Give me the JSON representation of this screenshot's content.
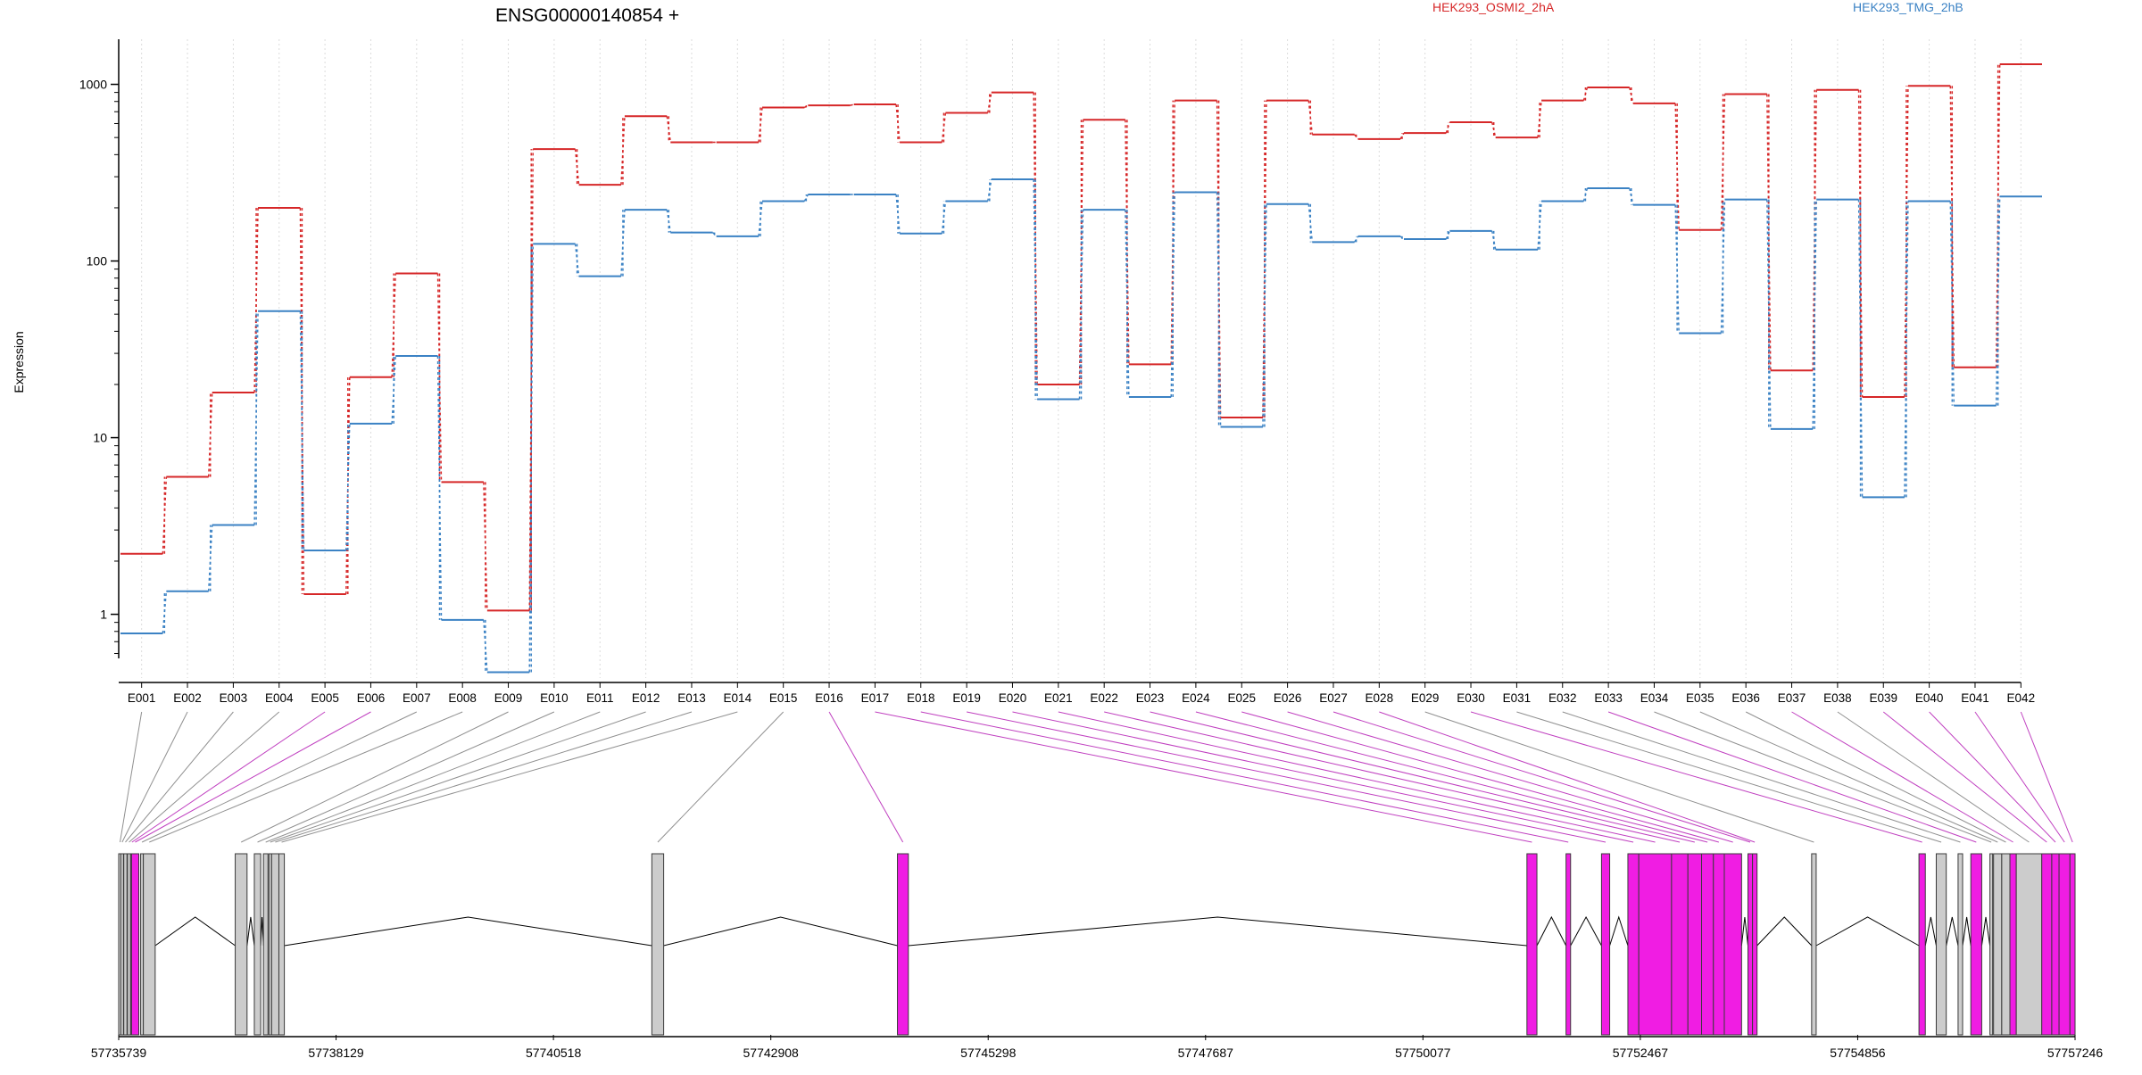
{
  "chart_data": {
    "type": "line",
    "title": "ENSG00000140854 +",
    "ylabel": "Expression",
    "yscale": "log",
    "ylim": [
      0.55,
      1800
    ],
    "yticks": [
      1,
      10,
      100,
      1000
    ],
    "ytick_labels": [
      "1",
      "10",
      "100",
      "1000"
    ],
    "grid": "vertical dotted lines at exon centres",
    "legend_position": "top-right",
    "categories": [
      "E001",
      "E002",
      "E003",
      "E004",
      "E005",
      "E006",
      "E007",
      "E008",
      "E009",
      "E010",
      "E011",
      "E012",
      "E013",
      "E014",
      "E015",
      "E016",
      "E017",
      "E018",
      "E019",
      "E020",
      "E021",
      "E022",
      "E023",
      "E024",
      "E025",
      "E026",
      "E027",
      "E028",
      "E029",
      "E030",
      "E031",
      "E032",
      "E033",
      "E034",
      "E035",
      "E036",
      "E037",
      "E038",
      "E039",
      "E040",
      "E041",
      "E042"
    ],
    "series": [
      {
        "name": "HEK293_OSMI2_2hA",
        "color": "#d62728",
        "values": [
          2.2,
          6,
          18,
          200,
          1.3,
          22,
          85,
          5.6,
          1.05,
          430,
          270,
          660,
          470,
          470,
          740,
          760,
          770,
          470,
          690,
          900,
          20,
          630,
          26,
          810,
          13,
          810,
          520,
          490,
          530,
          610,
          500,
          810,
          960,
          780,
          150,
          880,
          24,
          930,
          17,
          980,
          25,
          1300
        ]
      },
      {
        "name": "HEK293_TMG_2hB",
        "color": "#3b82c4",
        "values": [
          0.78,
          1.35,
          3.2,
          52,
          2.3,
          12,
          29,
          0.93,
          0.47,
          125,
          82,
          195,
          145,
          138,
          218,
          238,
          238,
          143,
          218,
          290,
          16.5,
          195,
          17,
          245,
          11.5,
          210,
          128,
          138,
          133,
          148,
          116,
          218,
          258,
          208,
          39,
          223,
          11.2,
          223,
          4.6,
          218,
          15.2,
          232
        ]
      }
    ],
    "exon_highlight": [
      false,
      false,
      false,
      false,
      true,
      true,
      false,
      false,
      false,
      false,
      false,
      false,
      false,
      false,
      false,
      true,
      true,
      true,
      true,
      true,
      true,
      true,
      true,
      true,
      true,
      true,
      true,
      true,
      false,
      true,
      false,
      false,
      true,
      false,
      false,
      false,
      true,
      false,
      true,
      true,
      true,
      true
    ],
    "gene_model": {
      "start": 57735739,
      "end": 57757246,
      "coordinate_labels": [
        "57735739",
        "57738129",
        "57740518",
        "57742908",
        "57745298",
        "57747687",
        "57750077",
        "57752467",
        "57754856",
        "57757246"
      ],
      "exons": [
        [
          57735739,
          57735760
        ],
        [
          57735762,
          57735790
        ],
        [
          57735795,
          57735830
        ],
        [
          57735835,
          57735870
        ],
        [
          57735870,
          57735880
        ],
        [
          57735880,
          57735960
        ],
        [
          57735980,
          57736010
        ],
        [
          57736010,
          57736140
        ],
        [
          57737020,
          57737150
        ],
        [
          57737230,
          57737300
        ],
        [
          57737330,
          57737380
        ],
        [
          57737390,
          57737420
        ],
        [
          57737420,
          57737500
        ],
        [
          57737500,
          57737560
        ],
        [
          57741600,
          57741730
        ],
        [
          57744300,
          57744420
        ],
        [
          57751220,
          57751330
        ],
        [
          57751650,
          57751700
        ],
        [
          57752040,
          57752130
        ],
        [
          57752330,
          57752450
        ],
        [
          57752450,
          57752810
        ],
        [
          57752810,
          57752990
        ],
        [
          57752990,
          57753140
        ],
        [
          57753140,
          57753270
        ],
        [
          57753270,
          57753390
        ],
        [
          57753390,
          57753580
        ],
        [
          57753650,
          57753700
        ],
        [
          57753700,
          57753750
        ],
        [
          57754350,
          57754400
        ],
        [
          57755530,
          57755600
        ],
        [
          57755720,
          57755830
        ],
        [
          57755960,
          57756010
        ],
        [
          57756100,
          57756220
        ],
        [
          57756310,
          57756340
        ],
        [
          57756350,
          57756440
        ],
        [
          57756440,
          57756530
        ],
        [
          57756530,
          57756600
        ],
        [
          57756600,
          57756880
        ],
        [
          57756880,
          57756990
        ],
        [
          57756990,
          57757070
        ],
        [
          57757070,
          57757190
        ],
        [
          57757190,
          57757246
        ]
      ]
    }
  }
}
